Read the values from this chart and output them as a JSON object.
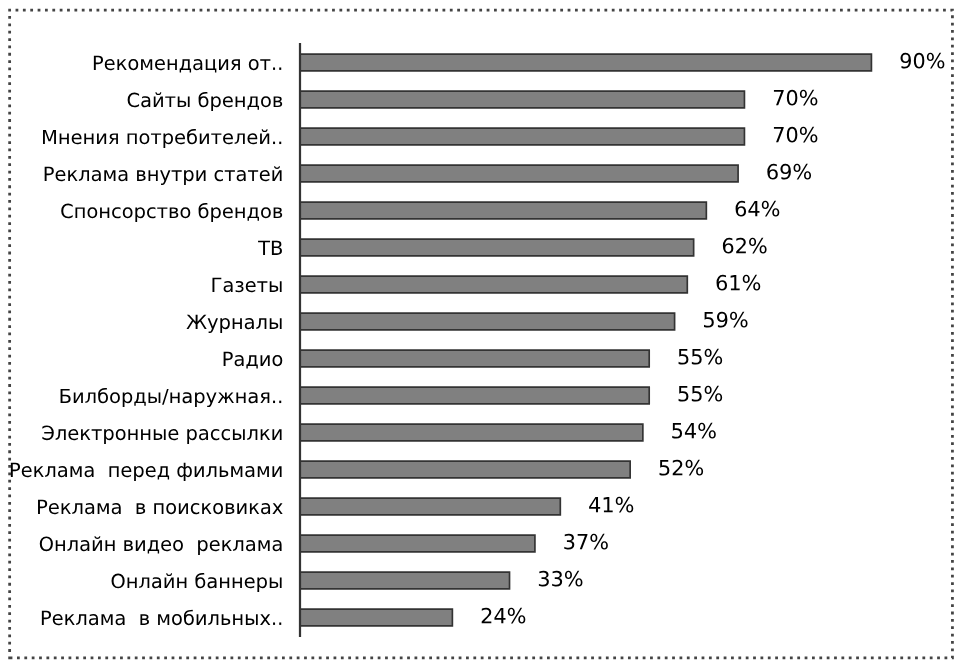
{
  "chart_data": {
    "type": "bar",
    "orientation": "horizontal",
    "categories": [
      "Рекомендация от..",
      "Сайты брендов",
      "Мнения потребителей..",
      "Реклама внутри статей",
      "Спонсорство брендов",
      "ТВ",
      "Газеты",
      "Журналы",
      "Радио",
      "Билборды/наружная..",
      "Электронные рассылки",
      "Реклама  перед фильмами",
      "Реклама  в поисковиках",
      "Онлайн видео  реклама",
      "Онлайн баннеры",
      "Реклама  в мобильных.."
    ],
    "values": [
      90,
      70,
      70,
      69,
      64,
      62,
      61,
      59,
      55,
      55,
      54,
      52,
      41,
      37,
      33,
      24
    ],
    "value_labels": [
      "90%",
      "70%",
      "70%",
      "69%",
      "64%",
      "62%",
      "61%",
      "59%",
      "55%",
      "55%",
      "54%",
      "52%",
      "41%",
      "37%",
      "33%",
      "24%"
    ],
    "color": "#808080",
    "tick_labels": "y",
    "grid": false,
    "legend": false
  }
}
